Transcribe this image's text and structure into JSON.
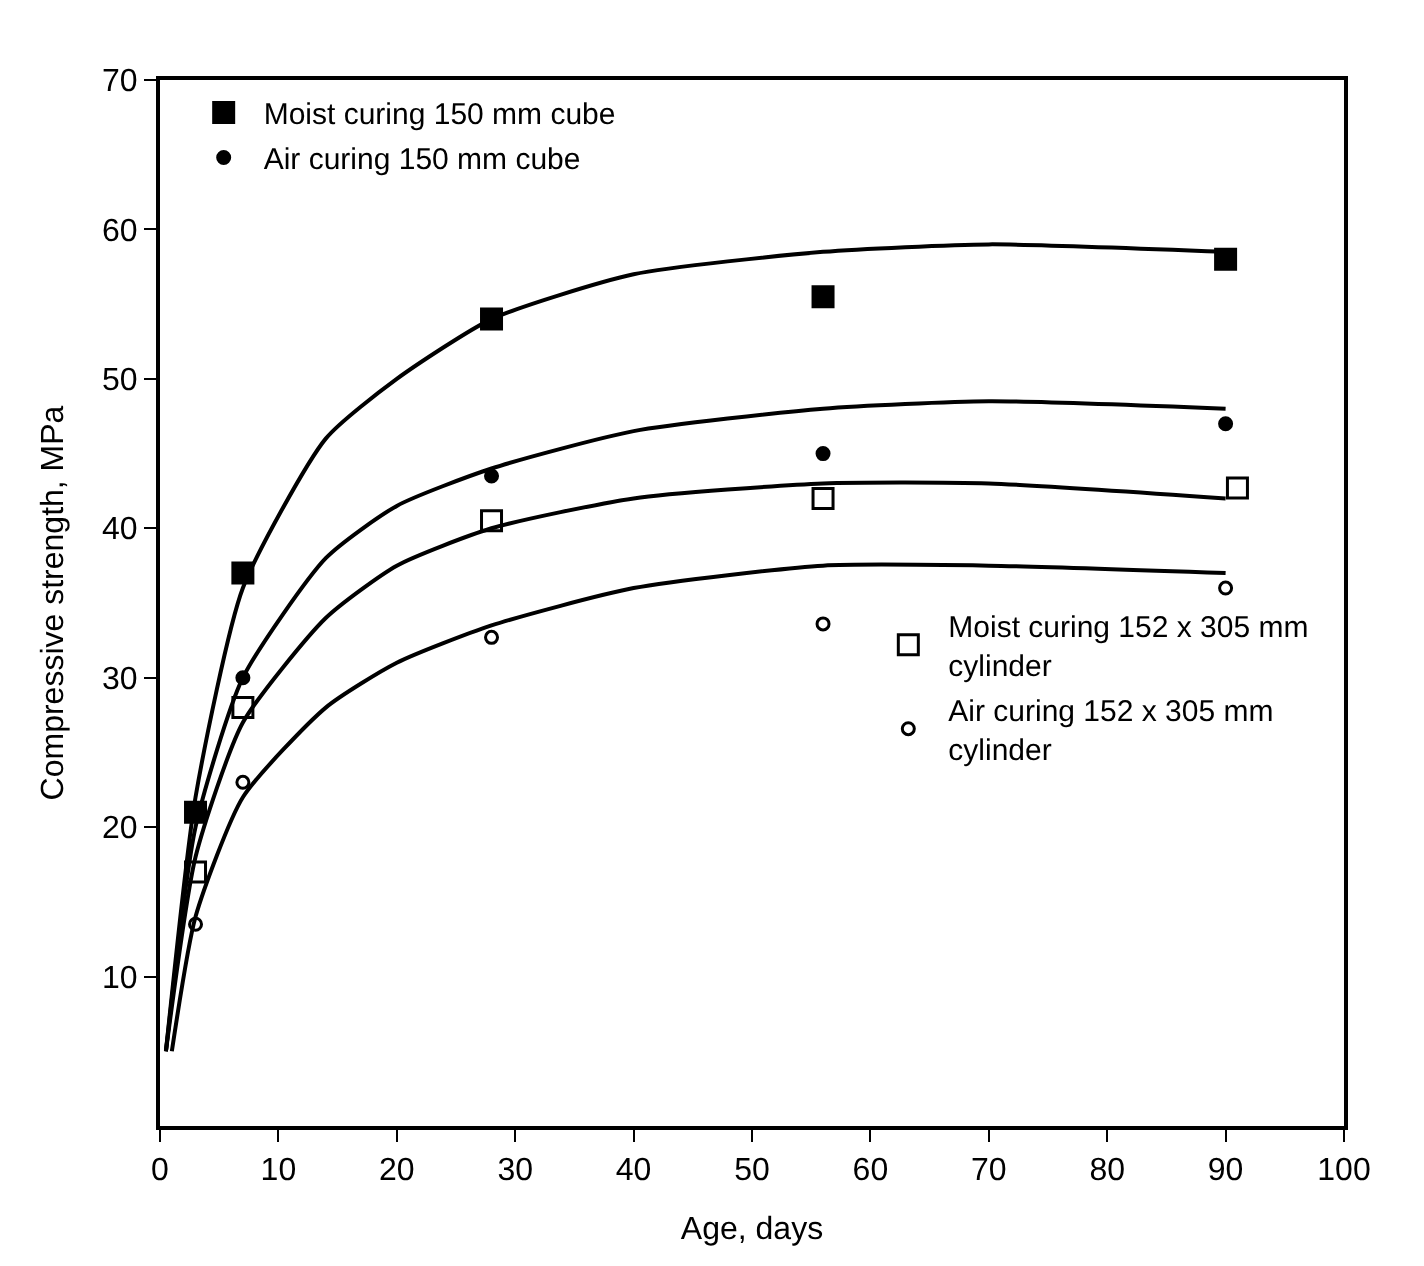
{
  "chart_data": {
    "type": "scatter",
    "xlabel": "Age, days",
    "ylabel": "Compressive strength, MPa",
    "xlim": [
      0,
      100
    ],
    "xticks": [
      0,
      10,
      20,
      30,
      40,
      50,
      60,
      70,
      80,
      90,
      100
    ],
    "ylim": [
      0,
      70
    ],
    "yticks": [
      10,
      20,
      30,
      40,
      50,
      60,
      70
    ],
    "legend": "top left",
    "series": [
      {
        "name": "Moist curing 150 mm cube",
        "color": "#000000",
        "marker": "square",
        "x": [
          3,
          7,
          28,
          56,
          90
        ],
        "values": [
          21,
          37,
          54,
          55.5,
          58
        ]
      },
      {
        "name": "Air curing 150 mm cube",
        "color": "#000000",
        "marker": "circle",
        "x": [
          7,
          28,
          56,
          90
        ],
        "values": [
          30,
          43.5,
          45,
          47
        ]
      },
      {
        "name": "Moist curing 152 x 305 mm cylinder",
        "color": "#000000",
        "marker": "square-open",
        "x": [
          3,
          7,
          28,
          56,
          91
        ],
        "values": [
          17,
          28,
          40.5,
          42,
          42.7
        ]
      },
      {
        "name": "Air curing 152 x 305 mm cylinder",
        "color": "#000000",
        "marker": "circle-open",
        "x": [
          3,
          7,
          28,
          56,
          90
        ],
        "values": [
          13.5,
          23,
          32.7,
          33.6,
          36
        ]
      },
      {
        "type": "line",
        "color": "#000000",
        "marker": "none",
        "x": [
          0.5,
          3,
          7,
          14,
          20,
          28,
          40,
          56,
          70,
          90
        ],
        "values": [
          5,
          22,
          36,
          46,
          50,
          54,
          57,
          58.5,
          59,
          58.5
        ]
      },
      {
        "type": "line",
        "color": "#000000",
        "marker": "none",
        "x": [
          0.5,
          3,
          7,
          14,
          20,
          28,
          40,
          56,
          70,
          90
        ],
        "values": [
          5,
          20,
          30,
          38,
          41.5,
          44,
          46.5,
          48,
          48.5,
          48
        ]
      },
      {
        "type": "line",
        "color": "#000000",
        "marker": "none",
        "x": [
          0.5,
          3,
          7,
          14,
          20,
          28,
          40,
          56,
          70,
          90
        ],
        "values": [
          5,
          18,
          27,
          34,
          37.5,
          40,
          42,
          43,
          43,
          42
        ]
      },
      {
        "type": "line",
        "color": "#000000",
        "marker": "none",
        "x": [
          1,
          3,
          7,
          14,
          20,
          28,
          40,
          56,
          70,
          90
        ],
        "values": [
          5,
          14,
          22,
          28,
          31,
          33.5,
          36,
          37.5,
          37.5,
          37
        ]
      }
    ]
  }
}
